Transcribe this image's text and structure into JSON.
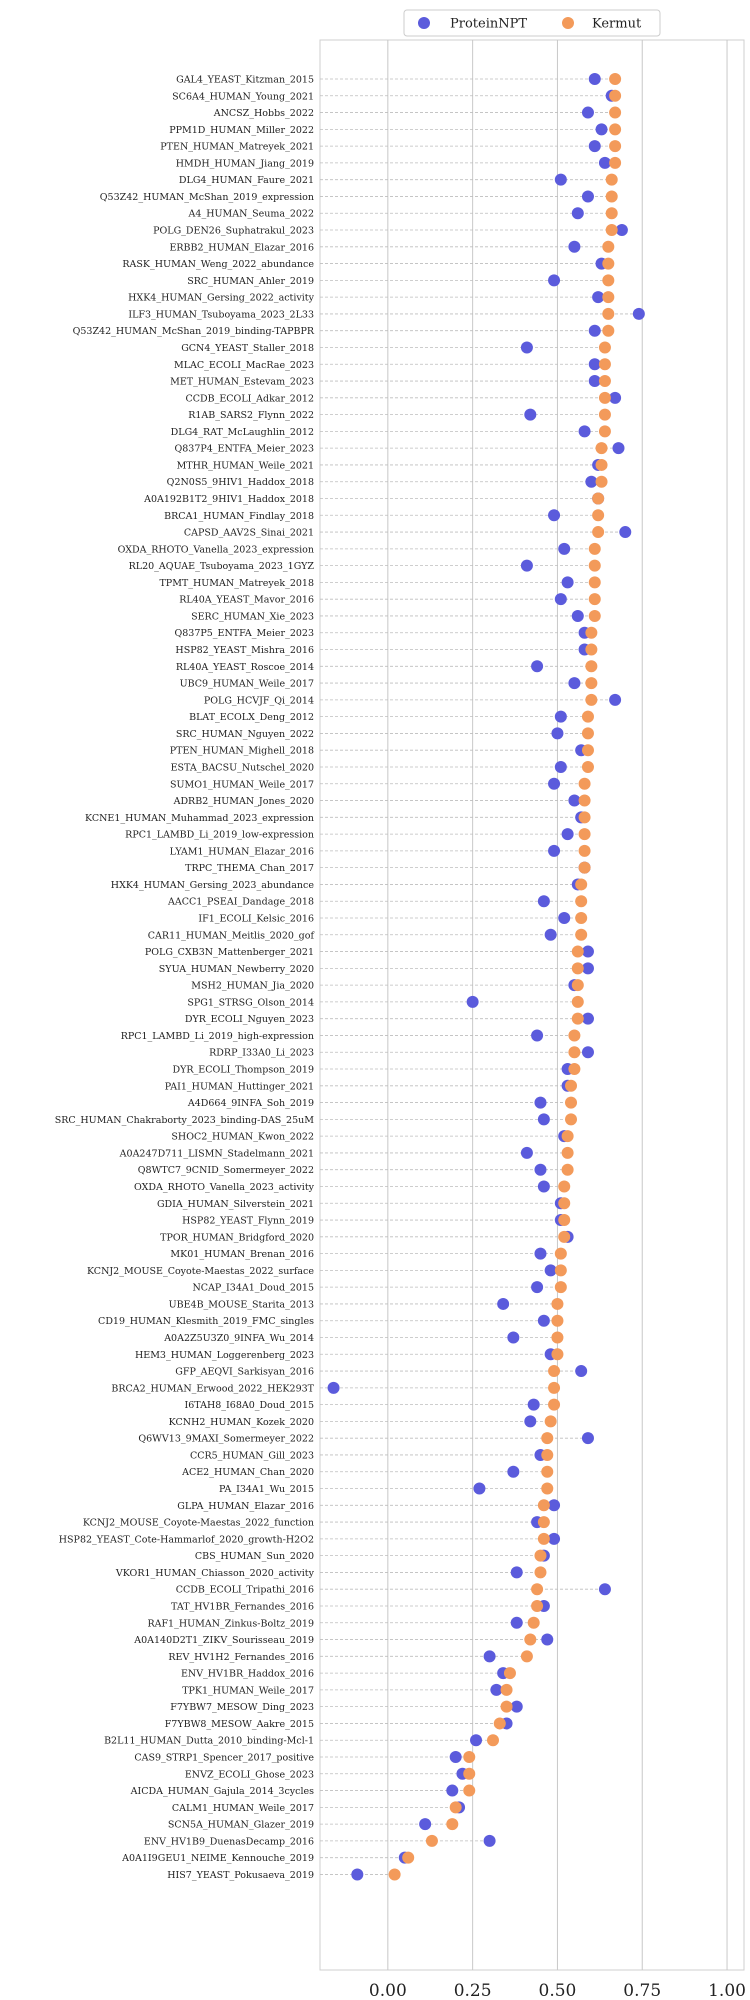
{
  "chart_data": {
    "type": "scatter",
    "orientation": "horizontal-dot-plot",
    "title": "",
    "xlabel": "",
    "ylabel": "",
    "xlim": [
      -0.2,
      1.05
    ],
    "xticks": [
      0.0,
      0.25,
      0.5,
      0.75,
      1.0
    ],
    "xtick_labels": [
      "0.00",
      "0.25",
      "0.50",
      "0.75",
      "1.00"
    ],
    "grid": "vertical lines at x ticks; dashed horizontal guide per row",
    "legend_position": "top-center",
    "categories": [
      "GAL4_YEAST_Kitzman_2015",
      "SC6A4_HUMAN_Young_2021",
      "ANCSZ_Hobbs_2022",
      "PPM1D_HUMAN_Miller_2022",
      "PTEN_HUMAN_Matreyek_2021",
      "HMDH_HUMAN_Jiang_2019",
      "DLG4_HUMAN_Faure_2021",
      "Q53Z42_HUMAN_McShan_2019_expression",
      "A4_HUMAN_Seuma_2022",
      "POLG_DEN26_Suphatrakul_2023",
      "ERBB2_HUMAN_Elazar_2016",
      "RASK_HUMAN_Weng_2022_abundance",
      "SRC_HUMAN_Ahler_2019",
      "HXK4_HUMAN_Gersing_2022_activity",
      "ILF3_HUMAN_Tsuboyama_2023_2L33",
      "Q53Z42_HUMAN_McShan_2019_binding-TAPBPR",
      "GCN4_YEAST_Staller_2018",
      "MLAC_ECOLI_MacRae_2023",
      "MET_HUMAN_Estevam_2023",
      "CCDB_ECOLI_Adkar_2012",
      "R1AB_SARS2_Flynn_2022",
      "DLG4_RAT_McLaughlin_2012",
      "Q837P4_ENTFA_Meier_2023",
      "MTHR_HUMAN_Weile_2021",
      "Q2N0S5_9HIV1_Haddox_2018",
      "A0A192B1T2_9HIV1_Haddox_2018",
      "BRCA1_HUMAN_Findlay_2018",
      "CAPSD_AAV2S_Sinai_2021",
      "OXDA_RHOTO_Vanella_2023_expression",
      "RL20_AQUAE_Tsuboyama_2023_1GYZ",
      "TPMT_HUMAN_Matreyek_2018",
      "RL40A_YEAST_Mavor_2016",
      "SERC_HUMAN_Xie_2023",
      "Q837P5_ENTFA_Meier_2023",
      "HSP82_YEAST_Mishra_2016",
      "RL40A_YEAST_Roscoe_2014",
      "UBC9_HUMAN_Weile_2017",
      "POLG_HCVJF_Qi_2014",
      "BLAT_ECOLX_Deng_2012",
      "SRC_HUMAN_Nguyen_2022",
      "PTEN_HUMAN_Mighell_2018",
      "ESTA_BACSU_Nutschel_2020",
      "SUMO1_HUMAN_Weile_2017",
      "ADRB2_HUMAN_Jones_2020",
      "KCNE1_HUMAN_Muhammad_2023_expression",
      "RPC1_LAMBD_Li_2019_low-expression",
      "LYAM1_HUMAN_Elazar_2016",
      "TRPC_THEMA_Chan_2017",
      "HXK4_HUMAN_Gersing_2023_abundance",
      "AACC1_PSEAI_Dandage_2018",
      "IF1_ECOLI_Kelsic_2016",
      "CAR11_HUMAN_Meitlis_2020_gof",
      "POLG_CXB3N_Mattenberger_2021",
      "SYUA_HUMAN_Newberry_2020",
      "MSH2_HUMAN_Jia_2020",
      "SPG1_STRSG_Olson_2014",
      "DYR_ECOLI_Nguyen_2023",
      "RPC1_LAMBD_Li_2019_high-expression",
      "RDRP_I33A0_Li_2023",
      "DYR_ECOLI_Thompson_2019",
      "PAI1_HUMAN_Huttinger_2021",
      "A4D664_9INFA_Soh_2019",
      "SRC_HUMAN_Chakraborty_2023_binding-DAS_25uM",
      "SHOC2_HUMAN_Kwon_2022",
      "A0A247D711_LISMN_Stadelmann_2021",
      "Q8WTC7_9CNID_Somermeyer_2022",
      "OXDA_RHOTO_Vanella_2023_activity",
      "GDIA_HUMAN_Silverstein_2021",
      "HSP82_YEAST_Flynn_2019",
      "TPOR_HUMAN_Bridgford_2020",
      "MK01_HUMAN_Brenan_2016",
      "KCNJ2_MOUSE_Coyote-Maestas_2022_surface",
      "NCAP_I34A1_Doud_2015",
      "UBE4B_MOUSE_Starita_2013",
      "CD19_HUMAN_Klesmith_2019_FMC_singles",
      "A0A2Z5U3Z0_9INFA_Wu_2014",
      "HEM3_HUMAN_Loggerenberg_2023",
      "GFP_AEQVI_Sarkisyan_2016",
      "BRCA2_HUMAN_Erwood_2022_HEK293T",
      "I6TAH8_I68A0_Doud_2015",
      "KCNH2_HUMAN_Kozek_2020",
      "Q6WV13_9MAXI_Somermeyer_2022",
      "CCR5_HUMAN_Gill_2023",
      "ACE2_HUMAN_Chan_2020",
      "PA_I34A1_Wu_2015",
      "GLPA_HUMAN_Elazar_2016",
      "KCNJ2_MOUSE_Coyote-Maestas_2022_function",
      "HSP82_YEAST_Cote-Hammarlof_2020_growth-H2O2",
      "CBS_HUMAN_Sun_2020",
      "VKOR1_HUMAN_Chiasson_2020_activity",
      "CCDB_ECOLI_Tripathi_2016",
      "TAT_HV1BR_Fernandes_2016",
      "RAF1_HUMAN_Zinkus-Boltz_2019",
      "A0A140D2T1_ZIKV_Sourisseau_2019",
      "REV_HV1H2_Fernandes_2016",
      "ENV_HV1BR_Haddox_2016",
      "TPK1_HUMAN_Weile_2017",
      "F7YBW7_MESOW_Ding_2023",
      "F7YBW8_MESOW_Aakre_2015",
      "B2L11_HUMAN_Dutta_2010_binding-Mcl-1",
      "CAS9_STRP1_Spencer_2017_positive",
      "ENVZ_ECOLI_Ghose_2023",
      "AICDA_HUMAN_Gajula_2014_3cycles",
      "CALM1_HUMAN_Weile_2017",
      "SCN5A_HUMAN_Glazer_2019",
      "ENV_HV1B9_DuenasDecamp_2016",
      "A0A1I9GEU1_NEIME_Kennouche_2019",
      "HIS7_YEAST_Pokusaeva_2019"
    ],
    "series": [
      {
        "name": "ProteinNPT",
        "color": "#5b5bdc",
        "values": [
          0.61,
          0.66,
          0.59,
          0.63,
          0.61,
          0.64,
          0.51,
          0.59,
          0.56,
          0.69,
          0.55,
          0.63,
          0.49,
          0.62,
          0.74,
          0.61,
          0.41,
          0.61,
          0.61,
          0.67,
          0.42,
          0.58,
          0.68,
          0.62,
          0.6,
          0.62,
          0.49,
          0.7,
          0.52,
          0.41,
          0.53,
          0.51,
          0.56,
          0.58,
          0.58,
          0.44,
          0.55,
          0.67,
          0.51,
          0.5,
          0.57,
          0.51,
          0.49,
          0.55,
          0.57,
          0.53,
          0.49,
          0.58,
          0.56,
          0.46,
          0.52,
          0.48,
          0.59,
          0.59,
          0.55,
          0.25,
          0.59,
          0.44,
          0.59,
          0.53,
          0.53,
          0.45,
          0.46,
          0.52,
          0.41,
          0.45,
          0.46,
          0.51,
          0.51,
          0.53,
          0.45,
          0.48,
          0.44,
          0.34,
          0.46,
          0.37,
          0.48,
          0.57,
          -0.16,
          0.43,
          0.42,
          0.59,
          0.45,
          0.37,
          0.27,
          0.49,
          0.44,
          0.49,
          0.46,
          0.38,
          0.64,
          0.46,
          0.38,
          0.47,
          0.3,
          0.34,
          0.32,
          0.38,
          0.35,
          0.26,
          0.2,
          0.22,
          0.19,
          0.21,
          0.11,
          0.3,
          0.05,
          -0.09
        ]
      },
      {
        "name": "Kermut",
        "color": "#f39a5a",
        "values": [
          0.67,
          0.67,
          0.67,
          0.67,
          0.67,
          0.67,
          0.66,
          0.66,
          0.66,
          0.66,
          0.65,
          0.65,
          0.65,
          0.65,
          0.65,
          0.65,
          0.64,
          0.64,
          0.64,
          0.64,
          0.64,
          0.64,
          0.63,
          0.63,
          0.63,
          0.62,
          0.62,
          0.62,
          0.61,
          0.61,
          0.61,
          0.61,
          0.61,
          0.6,
          0.6,
          0.6,
          0.6,
          0.6,
          0.59,
          0.59,
          0.59,
          0.59,
          0.58,
          0.58,
          0.58,
          0.58,
          0.58,
          0.58,
          0.57,
          0.57,
          0.57,
          0.57,
          0.56,
          0.56,
          0.56,
          0.56,
          0.56,
          0.55,
          0.55,
          0.55,
          0.54,
          0.54,
          0.54,
          0.53,
          0.53,
          0.53,
          0.52,
          0.52,
          0.52,
          0.52,
          0.51,
          0.51,
          0.51,
          0.5,
          0.5,
          0.5,
          0.5,
          0.49,
          0.49,
          0.49,
          0.48,
          0.47,
          0.47,
          0.47,
          0.47,
          0.46,
          0.46,
          0.46,
          0.45,
          0.45,
          0.44,
          0.44,
          0.43,
          0.42,
          0.41,
          0.36,
          0.35,
          0.35,
          0.33,
          0.31,
          0.24,
          0.24,
          0.24,
          0.2,
          0.19,
          0.13,
          0.06,
          0.02
        ]
      }
    ]
  }
}
